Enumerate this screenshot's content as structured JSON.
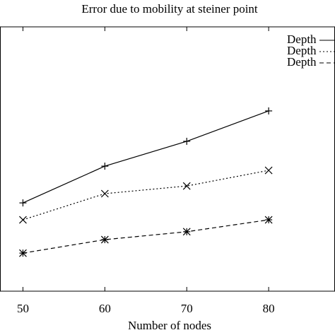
{
  "chart_data": {
    "type": "line",
    "title": "Error due to mobility at steiner point",
    "xlabel": "Number of nodes",
    "x": [
      50,
      60,
      70,
      80
    ],
    "xlim": [
      47.2,
      88.1
    ],
    "xticks": [
      50,
      60,
      70,
      80
    ],
    "ylim": [
      0,
      100
    ],
    "legend": "upper right",
    "series": [
      {
        "name": "Depth",
        "color": "#000000",
        "style": "solid",
        "marker": "+",
        "values": [
          33.4,
          47.3,
          56.7,
          68.2
        ]
      },
      {
        "name": "Depth",
        "color": "#000000",
        "style": "dotted",
        "marker": "x",
        "values": [
          27.0,
          36.9,
          39.8,
          45.7
        ]
      },
      {
        "name": "Depth",
        "color": "#000000",
        "style": "dashed",
        "marker": "*",
        "values": [
          14.4,
          19.5,
          22.5,
          27.0
        ]
      }
    ]
  }
}
